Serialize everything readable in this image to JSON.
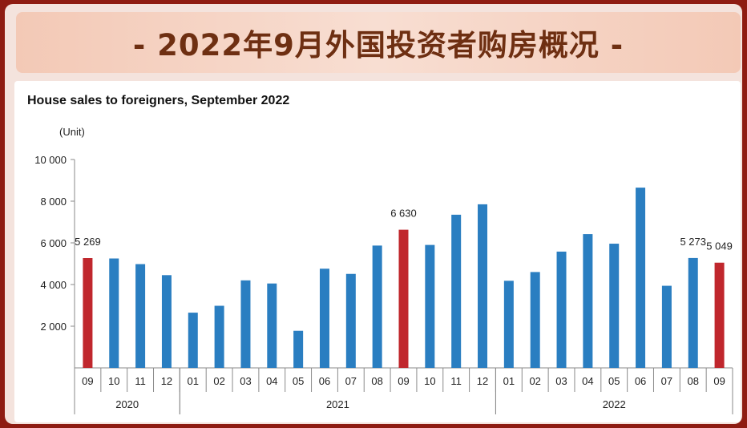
{
  "header": {
    "title": "- 2022年9月外国投资者购房概况 -"
  },
  "chart_data": {
    "type": "bar",
    "title": "House sales to foreigners, September 2022",
    "ylabel": "(Unit)",
    "ylim": [
      0,
      10000
    ],
    "yticks": [
      2000,
      4000,
      6000,
      8000,
      10000
    ],
    "ytick_labels": [
      "2 000",
      "4 000",
      "6 000",
      "8 000",
      "10 000"
    ],
    "grid": false,
    "legend": "none",
    "categories": [
      "09",
      "10",
      "11",
      "12",
      "01",
      "02",
      "03",
      "04",
      "05",
      "06",
      "07",
      "08",
      "09",
      "10",
      "11",
      "12",
      "01",
      "02",
      "03",
      "04",
      "05",
      "06",
      "07",
      "08",
      "09"
    ],
    "year_groups": [
      {
        "label": "2020",
        "start": 0,
        "end": 3
      },
      {
        "label": "2021",
        "start": 4,
        "end": 15
      },
      {
        "label": "2022",
        "start": 16,
        "end": 24
      }
    ],
    "values": [
      5269,
      5250,
      4980,
      4450,
      2650,
      2980,
      4200,
      4050,
      1780,
      4760,
      4510,
      5870,
      6630,
      5900,
      7350,
      7850,
      4180,
      4600,
      5580,
      6420,
      5960,
      8650,
      3940,
      5273,
      5049
    ],
    "highlight_indices": [
      0,
      12,
      24
    ],
    "data_labels": [
      {
        "index": 0,
        "text": "5 269"
      },
      {
        "index": 12,
        "text": "6 630"
      },
      {
        "index": 23,
        "text": "5 273"
      },
      {
        "index": 24,
        "text": "5 049"
      }
    ],
    "colors": {
      "bar": "#2a7ec1",
      "highlight": "#c0272d",
      "axis": "#8a8a8a"
    }
  }
}
